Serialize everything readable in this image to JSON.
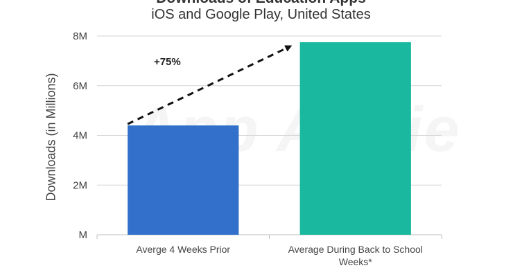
{
  "chart_data": {
    "type": "bar",
    "title": "Downloads of Education Apps",
    "subtitle": "iOS and Google Play, United States",
    "ylabel": "Downloads (in Millions)",
    "xlabel": "",
    "ylim": [
      0,
      8
    ],
    "yticks": [
      0,
      2,
      4,
      6,
      8
    ],
    "ytick_labels": [
      "M",
      "2M",
      "4M",
      "6M",
      "8M"
    ],
    "categories": [
      [
        "Averge 4 Weeks Prior"
      ],
      [
        "Average During Back to School",
        "Weeks*"
      ]
    ],
    "values": [
      4.4,
      7.75
    ],
    "colors": [
      "#3370cb",
      "#1ab89e"
    ],
    "grid": true,
    "annotation": {
      "text": "+75%",
      "style": "dashed-arrow"
    },
    "watermark": "App Annie"
  }
}
